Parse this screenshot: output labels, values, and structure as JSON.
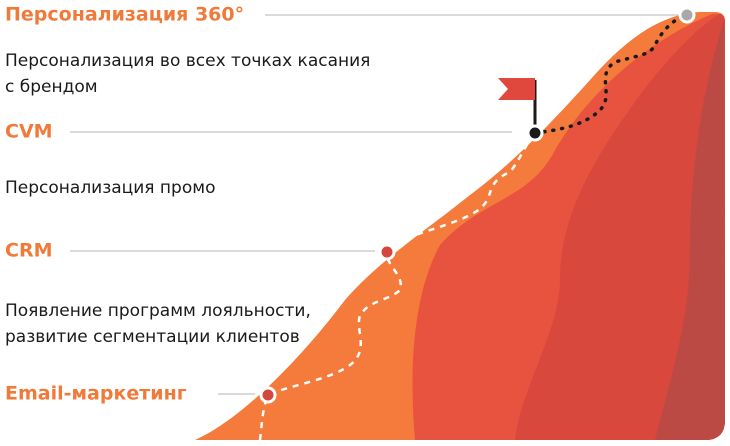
{
  "stages": [
    {
      "title": "Персонализация 360°",
      "description": [
        "Персонализация во всех точках касания",
        "с брендом"
      ]
    },
    {
      "title": "CVM",
      "description": [
        "Персонализация промо"
      ]
    },
    {
      "title": "CRM",
      "description": [
        "Появление программ лояльности,",
        "развитие сегментации клиентов"
      ]
    },
    {
      "title": "Email-маркетинг"
    }
  ]
}
